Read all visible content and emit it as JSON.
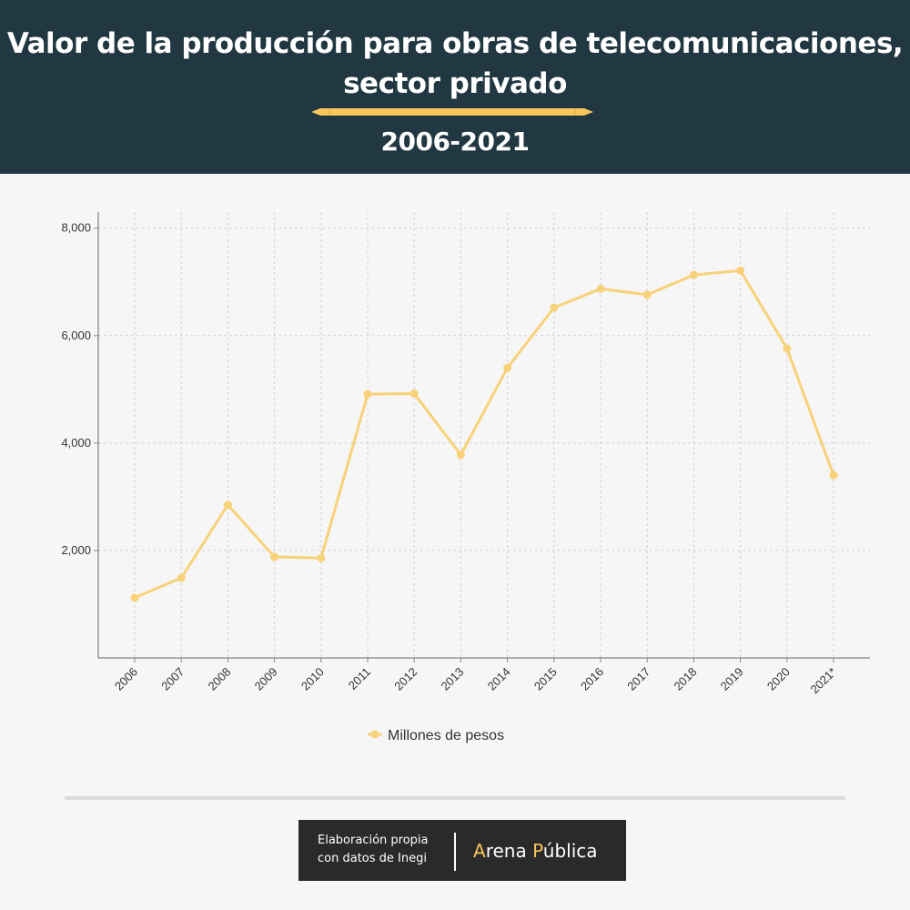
{
  "header": {
    "title_line1": "Valor de la producción para obras de telecomunicaciones,",
    "title_line2": "sector privado",
    "subtitle": "2006-2021"
  },
  "colors": {
    "header_bg": "#213741",
    "accent": "#f8c65a",
    "line": "#f8d27a",
    "background": "#f6f6f6"
  },
  "chart_data": {
    "type": "line",
    "title": "",
    "xlabel": "",
    "ylabel": "",
    "categories": [
      "2006",
      "2007",
      "2008",
      "2009",
      "2010",
      "2011",
      "2012",
      "2013",
      "2014",
      "2015",
      "2016",
      "2017",
      "2018",
      "2019",
      "2020",
      "2021*"
    ],
    "series": [
      {
        "name": "Millones de pesos",
        "values": [
          1120,
          1490,
          2850,
          1880,
          1860,
          4910,
          4920,
          3780,
          5400,
          6520,
          6870,
          6760,
          7130,
          7210,
          5760,
          3400
        ]
      }
    ],
    "ylim": [
      0,
      8300
    ],
    "yticks": [
      2000,
      4000,
      6000,
      8000
    ],
    "ytick_labels": [
      "2,000",
      "4,000",
      "6,000",
      "8,000"
    ],
    "grid": true,
    "legend": "bottom-center"
  },
  "footer": {
    "credit_line1": "Elaboración propia",
    "credit_line2": "con datos de Inegi",
    "brand_part1": "A",
    "brand_part2": "rena ",
    "brand_part3": "P",
    "brand_part4": "ública"
  }
}
